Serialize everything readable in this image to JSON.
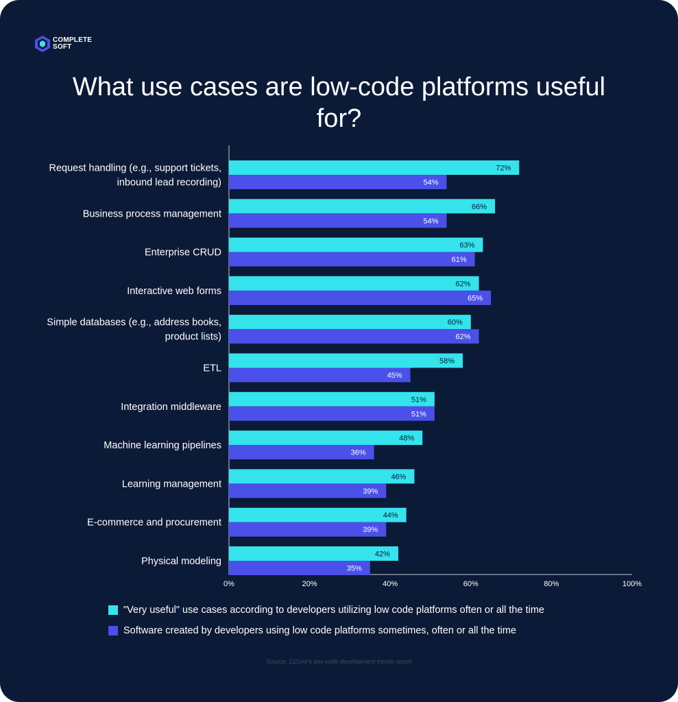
{
  "brand": {
    "line1": "COMPLETE",
    "line2": "SOFT"
  },
  "colors": {
    "background": "#0b1a36",
    "very_useful": "#35e3ec",
    "software_created": "#4a50e8",
    "text": "#ffffff",
    "axis": "#c8ccd6"
  },
  "chart_data": {
    "type": "bar",
    "orientation": "horizontal",
    "title": "What use cases are low-code platforms useful for?",
    "categories": [
      "Request handling (e.g., support tickets, inbound lead recording)",
      "Business process management",
      "Enterprise CRUD",
      "Interactive web forms",
      "Simple databases (e.g., address books, product lists)",
      "ETL",
      "Integration middleware",
      "Machine learning pipelines",
      "Learning management",
      "E-commerce and procurement",
      "Physical modeling"
    ],
    "category_lines": [
      [
        "Request handling (e.g., support tickets,",
        "inbound lead recording)"
      ],
      [
        "Business process management"
      ],
      [
        "Enterprise CRUD"
      ],
      [
        "Interactive web forms"
      ],
      [
        "Simple databases (e.g., address books,",
        "product lists)"
      ],
      [
        "ETL"
      ],
      [
        "Integration middleware"
      ],
      [
        "Machine learning pipelines"
      ],
      [
        "Learning management"
      ],
      [
        "E-commerce and procurement"
      ],
      [
        "Physical modeling"
      ]
    ],
    "series": [
      {
        "name": "\"Very useful\" use cases according to developers utilizing low code platforms often or all the time",
        "values": [
          72,
          66,
          63,
          62,
          60,
          58,
          51,
          48,
          46,
          44,
          42
        ]
      },
      {
        "name": "Software created by developers using low code platforms sometimes, often or all the time",
        "values": [
          54,
          54,
          61,
          65,
          62,
          45,
          51,
          36,
          39,
          39,
          35
        ]
      }
    ],
    "xlim": [
      0,
      100
    ],
    "xticks": [
      0,
      20,
      40,
      60,
      80,
      100
    ],
    "value_suffix": "%",
    "legend_position": "bottom"
  },
  "source": "Source: DZone's low-code development trends report"
}
